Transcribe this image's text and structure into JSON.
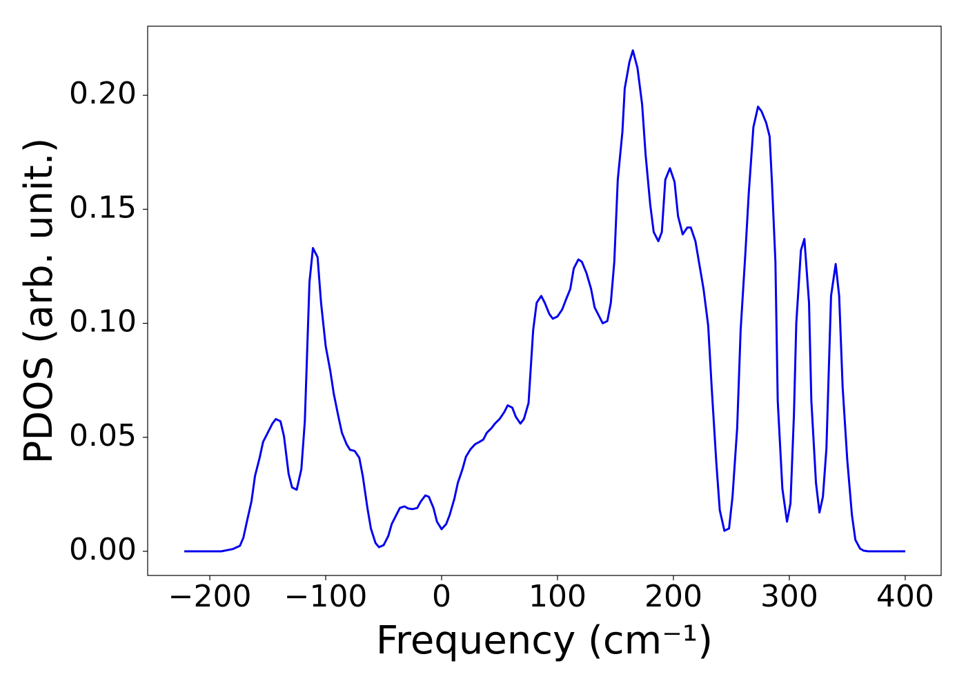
{
  "chart_data": {
    "type": "line",
    "x_label": "Frequency (cm⁻¹)",
    "y_label": "PDOS (arb. unit.)",
    "color": "#0000ee",
    "x": [
      -222,
      -190,
      -180,
      -174,
      -171,
      -168,
      -164,
      -161,
      -157,
      -154,
      -150,
      -146,
      -143,
      -139,
      -136,
      -132,
      -129,
      -125,
      -121,
      -118,
      -114,
      -111,
      -107,
      -104,
      -100,
      -96,
      -93,
      -89,
      -86,
      -82,
      -79,
      -75,
      -71,
      -68,
      -64,
      -61,
      -57,
      -54,
      -50,
      -46,
      -43,
      -39,
      -36,
      -32,
      -29,
      -25,
      -21,
      -18,
      -14,
      -11,
      -7,
      -4,
      0,
      4,
      7,
      11,
      14,
      18,
      21,
      25,
      29,
      32,
      36,
      39,
      43,
      46,
      50,
      54,
      57,
      61,
      64,
      68,
      71,
      75,
      79,
      82,
      86,
      89,
      93,
      96,
      100,
      104,
      107,
      111,
      114,
      118,
      121,
      125,
      129,
      132,
      136,
      139,
      143,
      146,
      149,
      152,
      156,
      158,
      162,
      165,
      169,
      173,
      176,
      180,
      183,
      187,
      190,
      193,
      197,
      201,
      204,
      208,
      212,
      215,
      219,
      223,
      226,
      230,
      233,
      237,
      240,
      244,
      248,
      251,
      255,
      258,
      262,
      265,
      269,
      273,
      276,
      280,
      283,
      285,
      288,
      290,
      294,
      298,
      301,
      304,
      306,
      310,
      313,
      317,
      319,
      323,
      326,
      329,
      332,
      336,
      340,
      343,
      346,
      350,
      354,
      357,
      361,
      364,
      368,
      400
    ],
    "values": [
      0,
      0,
      0.001,
      0.0024,
      0.006,
      0.013,
      0.022,
      0.033,
      0.041,
      0.048,
      0.052,
      0.056,
      0.058,
      0.057,
      0.0505,
      0.034,
      0.028,
      0.027,
      0.036,
      0.057,
      0.118,
      0.133,
      0.129,
      0.109,
      0.09,
      0.079,
      0.069,
      0.059,
      0.052,
      0.047,
      0.0445,
      0.044,
      0.041,
      0.033,
      0.019,
      0.01,
      0.0036,
      0.0018,
      0.0027,
      0.0067,
      0.012,
      0.016,
      0.019,
      0.0197,
      0.0188,
      0.0185,
      0.019,
      0.0218,
      0.0245,
      0.0239,
      0.019,
      0.013,
      0.0097,
      0.012,
      0.016,
      0.023,
      0.03,
      0.036,
      0.0415,
      0.0448,
      0.047,
      0.0478,
      0.049,
      0.052,
      0.054,
      0.056,
      0.058,
      0.061,
      0.064,
      0.063,
      0.059,
      0.056,
      0.058,
      0.065,
      0.097,
      0.109,
      0.112,
      0.109,
      0.104,
      0.102,
      0.103,
      0.106,
      0.11,
      0.115,
      0.124,
      0.128,
      0.127,
      0.122,
      0.115,
      0.107,
      0.103,
      0.1,
      0.101,
      0.109,
      0.127,
      0.163,
      0.184,
      0.203,
      0.2145,
      0.2197,
      0.212,
      0.196,
      0.174,
      0.152,
      0.14,
      0.136,
      0.14,
      0.163,
      0.168,
      0.162,
      0.147,
      0.139,
      0.142,
      0.142,
      0.136,
      0.124,
      0.115,
      0.099,
      0.072,
      0.039,
      0.018,
      0.009,
      0.01,
      0.024,
      0.054,
      0.097,
      0.13,
      0.157,
      0.186,
      0.195,
      0.193,
      0.188,
      0.182,
      0.162,
      0.127,
      0.066,
      0.0275,
      0.013,
      0.021,
      0.06,
      0.1,
      0.132,
      0.137,
      0.109,
      0.066,
      0.03,
      0.017,
      0.024,
      0.045,
      0.112,
      0.126,
      0.112,
      0.072,
      0.04,
      0.016,
      0.005,
      0.0012,
      0.0003,
      0,
      0
    ],
    "xlim": [
      -253.6,
      431
    ],
    "ylim": [
      -0.0106,
      0.2303
    ],
    "xticks": [
      {
        "value": -200,
        "label": "−200"
      },
      {
        "value": -100,
        "label": "−100"
      },
      0,
      100,
      200,
      300,
      400
    ],
    "yticks": [
      {
        "value": 0,
        "label": "0.00"
      },
      {
        "value": 0.05,
        "label": "0.05"
      },
      {
        "value": 0.1,
        "label": "0.10"
      },
      {
        "value": 0.15,
        "label": "0.15"
      },
      {
        "value": 0.2,
        "label": "0.20"
      }
    ],
    "grid": false
  }
}
